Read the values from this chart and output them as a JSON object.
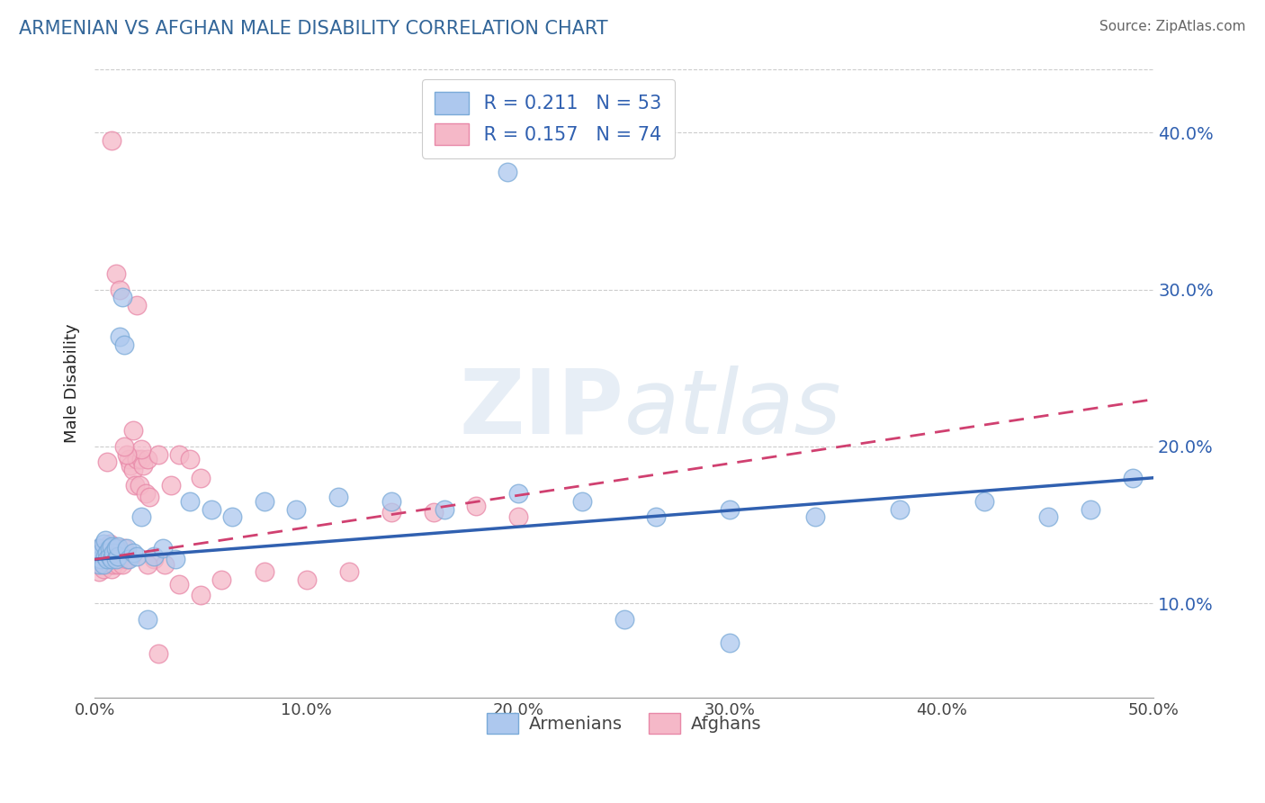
{
  "title": "ARMENIAN VS AFGHAN MALE DISABILITY CORRELATION CHART",
  "source": "Source: ZipAtlas.com",
  "ylabel": "Male Disability",
  "xlabel": "",
  "xlim": [
    0.0,
    0.5
  ],
  "ylim": [
    0.04,
    0.44
  ],
  "xticks": [
    0.0,
    0.1,
    0.2,
    0.3,
    0.4,
    0.5
  ],
  "yticks": [
    0.1,
    0.2,
    0.3,
    0.4
  ],
  "xtick_labels": [
    "0.0%",
    "10.0%",
    "20.0%",
    "30.0%",
    "40.0%",
    "50.0%"
  ],
  "ytick_labels": [
    "10.0%",
    "20.0%",
    "30.0%",
    "40.0%"
  ],
  "armenian_color": "#adc8ee",
  "afghan_color": "#f5b8c8",
  "armenian_edge": "#7aaad8",
  "afghan_edge": "#e888a8",
  "legend_label1": "Armenians",
  "legend_label2": "Afghans",
  "watermark": "ZIPatlas",
  "armenian_x": [
    0.001,
    0.002,
    0.002,
    0.003,
    0.003,
    0.004,
    0.004,
    0.005,
    0.005,
    0.006,
    0.006,
    0.007,
    0.007,
    0.008,
    0.008,
    0.009,
    0.01,
    0.01,
    0.011,
    0.011,
    0.012,
    0.013,
    0.014,
    0.015,
    0.016,
    0.018,
    0.02,
    0.022,
    0.025,
    0.028,
    0.032,
    0.038,
    0.045,
    0.055,
    0.065,
    0.08,
    0.095,
    0.115,
    0.14,
    0.165,
    0.195,
    0.23,
    0.265,
    0.3,
    0.34,
    0.38,
    0.42,
    0.45,
    0.47,
    0.49,
    0.2,
    0.25,
    0.3
  ],
  "armenian_y": [
    0.13,
    0.125,
    0.135,
    0.128,
    0.132,
    0.138,
    0.125,
    0.13,
    0.14,
    0.132,
    0.128,
    0.135,
    0.13,
    0.136,
    0.128,
    0.132,
    0.135,
    0.128,
    0.13,
    0.136,
    0.27,
    0.295,
    0.265,
    0.135,
    0.128,
    0.132,
    0.13,
    0.155,
    0.09,
    0.13,
    0.135,
    0.128,
    0.165,
    0.16,
    0.155,
    0.165,
    0.16,
    0.168,
    0.165,
    0.16,
    0.375,
    0.165,
    0.155,
    0.16,
    0.155,
    0.16,
    0.165,
    0.155,
    0.16,
    0.18,
    0.17,
    0.09,
    0.075
  ],
  "afghan_x": [
    0.001,
    0.001,
    0.002,
    0.002,
    0.002,
    0.003,
    0.003,
    0.003,
    0.004,
    0.004,
    0.004,
    0.005,
    0.005,
    0.005,
    0.006,
    0.006,
    0.007,
    0.007,
    0.007,
    0.008,
    0.008,
    0.008,
    0.009,
    0.009,
    0.01,
    0.01,
    0.01,
    0.011,
    0.011,
    0.012,
    0.012,
    0.013,
    0.013,
    0.014,
    0.015,
    0.016,
    0.017,
    0.018,
    0.019,
    0.02,
    0.021,
    0.022,
    0.023,
    0.024,
    0.025,
    0.026,
    0.028,
    0.03,
    0.033,
    0.036,
    0.04,
    0.045,
    0.05,
    0.06,
    0.08,
    0.1,
    0.12,
    0.14,
    0.16,
    0.18,
    0.2,
    0.022,
    0.015,
    0.01,
    0.012,
    0.008,
    0.014,
    0.006,
    0.02,
    0.018,
    0.03,
    0.025,
    0.05,
    0.04
  ],
  "afghan_y": [
    0.13,
    0.125,
    0.135,
    0.12,
    0.128,
    0.13,
    0.125,
    0.132,
    0.128,
    0.135,
    0.122,
    0.13,
    0.125,
    0.132,
    0.128,
    0.135,
    0.13,
    0.125,
    0.138,
    0.128,
    0.135,
    0.122,
    0.13,
    0.125,
    0.135,
    0.128,
    0.13,
    0.125,
    0.135,
    0.128,
    0.132,
    0.13,
    0.125,
    0.135,
    0.128,
    0.192,
    0.188,
    0.185,
    0.175,
    0.192,
    0.175,
    0.192,
    0.188,
    0.17,
    0.192,
    0.168,
    0.128,
    0.195,
    0.125,
    0.175,
    0.195,
    0.192,
    0.18,
    0.115,
    0.12,
    0.115,
    0.12,
    0.158,
    0.158,
    0.162,
    0.155,
    0.198,
    0.195,
    0.31,
    0.3,
    0.395,
    0.2,
    0.19,
    0.29,
    0.21,
    0.068,
    0.125,
    0.105,
    0.112
  ]
}
